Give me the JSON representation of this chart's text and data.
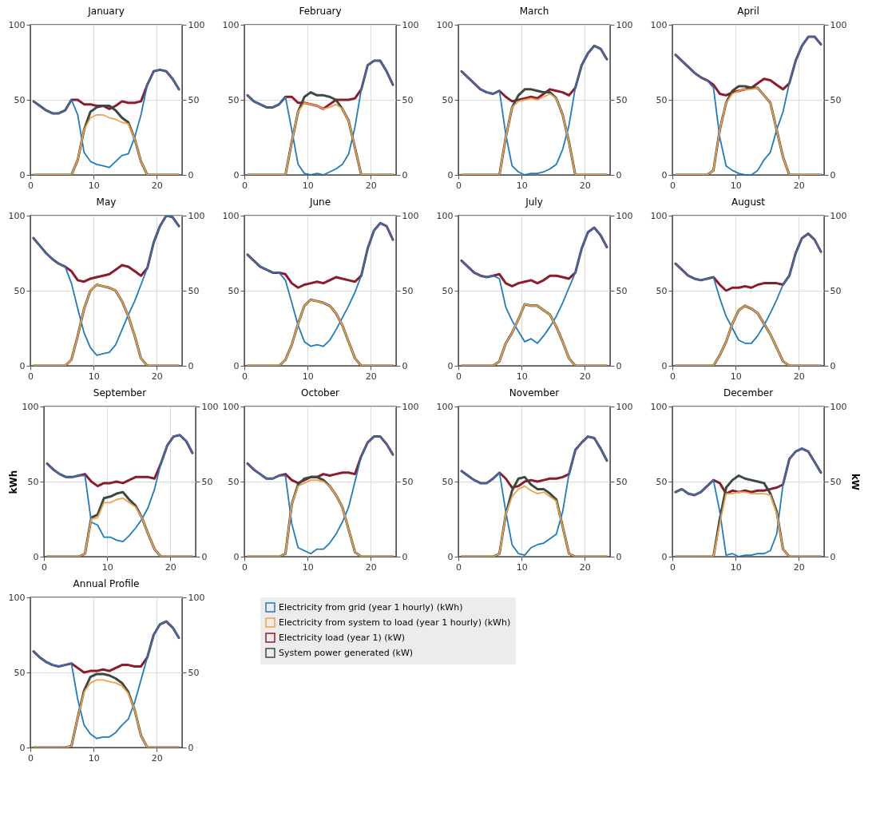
{
  "chart_data": [
    {
      "type": "line",
      "title": "January",
      "x": [
        0.5,
        1.5,
        2.5,
        3.5,
        4.5,
        5.5,
        6.5,
        7.5,
        8.5,
        9.5,
        10.5,
        11.5,
        12.5,
        13.5,
        14.5,
        15.5,
        16.5,
        17.5,
        18.5,
        19.5,
        20.5,
        21.5,
        22.5,
        23.5
      ],
      "xlim": [
        0,
        24
      ],
      "xticks": [
        0,
        10,
        20
      ],
      "ylim": [
        0,
        100
      ],
      "yticks": [
        0,
        50,
        100
      ],
      "y2lim": [
        0,
        100
      ],
      "y2ticks": [
        0,
        50,
        100
      ],
      "grid": true,
      "series": [
        {
          "color": "#1f7bbf",
          "values": [
            49,
            46,
            43,
            41,
            41,
            43,
            50,
            40,
            15,
            9,
            7,
            6,
            5,
            9,
            13,
            14,
            25,
            40,
            60,
            69,
            70,
            69,
            64,
            57
          ]
        },
        {
          "color": "#f0a04b",
          "values": [
            0,
            0,
            0,
            0,
            0,
            0,
            0,
            10,
            30,
            38,
            40,
            40,
            38,
            37,
            35,
            34,
            24,
            9,
            0,
            0,
            0,
            0,
            0,
            0
          ]
        },
        {
          "color": "#8c1c2c",
          "axis": "y2",
          "values": [
            49,
            46,
            43,
            41,
            41,
            43,
            50,
            50,
            47,
            47,
            46,
            46,
            44,
            46,
            49,
            48,
            48,
            49,
            60,
            69,
            70,
            69,
            64,
            57
          ]
        },
        {
          "color": "#3b4a40",
          "axis": "y2",
          "values": [
            0,
            0,
            0,
            0,
            0,
            0,
            0,
            10,
            30,
            42,
            45,
            46,
            46,
            43,
            38,
            35,
            24,
            9,
            0,
            0,
            0,
            0,
            0,
            0
          ]
        }
      ]
    },
    {
      "type": "line",
      "title": "February",
      "x": [
        0.5,
        1.5,
        2.5,
        3.5,
        4.5,
        5.5,
        6.5,
        7.5,
        8.5,
        9.5,
        10.5,
        11.5,
        12.5,
        13.5,
        14.5,
        15.5,
        16.5,
        17.5,
        18.5,
        19.5,
        20.5,
        21.5,
        22.5,
        23.5
      ],
      "xlim": [
        0,
        24
      ],
      "xticks": [
        0,
        10,
        20
      ],
      "ylim": [
        0,
        100
      ],
      "yticks": [
        0,
        50,
        100
      ],
      "y2lim": [
        0,
        100
      ],
      "y2ticks": [
        0,
        50,
        100
      ],
      "grid": true,
      "series": [
        {
          "color": "#1f7bbf",
          "values": [
            53,
            49,
            47,
            45,
            45,
            47,
            52,
            30,
            7,
            1,
            0,
            1,
            0,
            2,
            4,
            7,
            14,
            32,
            57,
            73,
            76,
            76,
            69,
            60
          ]
        },
        {
          "color": "#f0a04b",
          "values": [
            0,
            0,
            0,
            0,
            0,
            0,
            0,
            22,
            42,
            48,
            47,
            46,
            44,
            45,
            47,
            44,
            36,
            18,
            0,
            0,
            0,
            0,
            0,
            0
          ]
        },
        {
          "color": "#8c1c2c",
          "axis": "y2",
          "values": [
            53,
            49,
            47,
            45,
            45,
            47,
            52,
            52,
            48,
            48,
            47,
            46,
            44,
            47,
            50,
            50,
            50,
            51,
            57,
            73,
            76,
            76,
            69,
            60
          ]
        },
        {
          "color": "#3b4a40",
          "axis": "y2",
          "values": [
            0,
            0,
            0,
            0,
            0,
            0,
            0,
            22,
            42,
            52,
            55,
            53,
            53,
            52,
            50,
            44,
            36,
            18,
            0,
            0,
            0,
            0,
            0,
            0
          ]
        }
      ]
    },
    {
      "type": "line",
      "title": "March",
      "x": [
        0.5,
        1.5,
        2.5,
        3.5,
        4.5,
        5.5,
        6.5,
        7.5,
        8.5,
        9.5,
        10.5,
        11.5,
        12.5,
        13.5,
        14.5,
        15.5,
        16.5,
        17.5,
        18.5,
        19.5,
        20.5,
        21.5,
        22.5,
        23.5
      ],
      "xlim": [
        0,
        24
      ],
      "xticks": [
        0,
        10,
        20
      ],
      "ylim": [
        0,
        100
      ],
      "yticks": [
        0,
        50,
        100
      ],
      "y2lim": [
        0,
        100
      ],
      "y2ticks": [
        0,
        50,
        100
      ],
      "grid": true,
      "series": [
        {
          "color": "#1f7bbf",
          "values": [
            69,
            65,
            61,
            57,
            55,
            54,
            56,
            27,
            6,
            2,
            0,
            1,
            1,
            2,
            4,
            7,
            17,
            33,
            58,
            73,
            81,
            86,
            84,
            77
          ]
        },
        {
          "color": "#f0a04b",
          "values": [
            0,
            0,
            0,
            0,
            0,
            0,
            0,
            25,
            45,
            49,
            50,
            51,
            50,
            52,
            54,
            51,
            40,
            22,
            0,
            0,
            0,
            0,
            0,
            0
          ]
        },
        {
          "color": "#8c1c2c",
          "axis": "y2",
          "values": [
            69,
            65,
            61,
            57,
            55,
            54,
            56,
            52,
            49,
            50,
            51,
            52,
            51,
            54,
            57,
            56,
            55,
            53,
            58,
            73,
            81,
            86,
            84,
            77
          ]
        },
        {
          "color": "#3b4a40",
          "axis": "y2",
          "values": [
            0,
            0,
            0,
            0,
            0,
            0,
            0,
            25,
            45,
            53,
            57,
            57,
            56,
            55,
            55,
            51,
            40,
            22,
            0,
            0,
            0,
            0,
            0,
            0
          ]
        }
      ]
    },
    {
      "type": "line",
      "title": "April",
      "x": [
        0.5,
        1.5,
        2.5,
        3.5,
        4.5,
        5.5,
        6.5,
        7.5,
        8.5,
        9.5,
        10.5,
        11.5,
        12.5,
        13.5,
        14.5,
        15.5,
        16.5,
        17.5,
        18.5,
        19.5,
        20.5,
        21.5,
        22.5,
        23.5
      ],
      "xlim": [
        0,
        24
      ],
      "xticks": [
        0,
        10,
        20
      ],
      "ylim": [
        0,
        100
      ],
      "yticks": [
        0,
        50,
        100
      ],
      "y2lim": [
        0,
        100
      ],
      "y2ticks": [
        0,
        50,
        100
      ],
      "grid": true,
      "series": [
        {
          "color": "#1f7bbf",
          "values": [
            80,
            76,
            72,
            68,
            65,
            63,
            58,
            25,
            6,
            3,
            1,
            0,
            0,
            3,
            10,
            15,
            30,
            42,
            61,
            76,
            86,
            92,
            92,
            87
          ]
        },
        {
          "color": "#f0a04b",
          "values": [
            0,
            0,
            0,
            0,
            0,
            0,
            3,
            30,
            48,
            54,
            56,
            57,
            57,
            58,
            53,
            48,
            30,
            12,
            0,
            0,
            0,
            0,
            0,
            0
          ]
        },
        {
          "color": "#8c1c2c",
          "axis": "y2",
          "values": [
            80,
            76,
            72,
            68,
            65,
            63,
            60,
            54,
            53,
            55,
            56,
            57,
            58,
            61,
            64,
            63,
            60,
            57,
            61,
            76,
            86,
            92,
            92,
            87
          ]
        },
        {
          "color": "#3b4a40",
          "axis": "y2",
          "values": [
            0,
            0,
            0,
            0,
            0,
            0,
            3,
            30,
            48,
            56,
            59,
            59,
            58,
            58,
            53,
            48,
            30,
            12,
            0,
            0,
            0,
            0,
            0,
            0
          ]
        }
      ]
    },
    {
      "type": "line",
      "title": "May",
      "x": [
        0.5,
        1.5,
        2.5,
        3.5,
        4.5,
        5.5,
        6.5,
        7.5,
        8.5,
        9.5,
        10.5,
        11.5,
        12.5,
        13.5,
        14.5,
        15.5,
        16.5,
        17.5,
        18.5,
        19.5,
        20.5,
        21.5,
        22.5,
        23.5
      ],
      "xlim": [
        0,
        24
      ],
      "xticks": [
        0,
        10,
        20
      ],
      "ylim": [
        0,
        100
      ],
      "yticks": [
        0,
        50,
        100
      ],
      "y2lim": [
        0,
        100
      ],
      "y2ticks": [
        0,
        50,
        100
      ],
      "grid": true,
      "series": [
        {
          "color": "#1f7bbf",
          "values": [
            85,
            80,
            75,
            71,
            68,
            66,
            55,
            38,
            22,
            12,
            7,
            8,
            9,
            14,
            24,
            34,
            43,
            54,
            65,
            82,
            93,
            100,
            99,
            93
          ]
        },
        {
          "color": "#f0a04b",
          "values": [
            0,
            0,
            0,
            0,
            0,
            0,
            4,
            20,
            38,
            50,
            54,
            53,
            52,
            50,
            43,
            33,
            20,
            5,
            0,
            0,
            0,
            0,
            0,
            0
          ]
        },
        {
          "color": "#8c1c2c",
          "axis": "y2",
          "values": [
            85,
            80,
            75,
            71,
            68,
            66,
            63,
            57,
            56,
            58,
            59,
            60,
            61,
            64,
            67,
            66,
            63,
            60,
            65,
            82,
            93,
            100,
            99,
            93
          ]
        },
        {
          "color": "#3b4a40",
          "axis": "y2",
          "values": [
            0,
            0,
            0,
            0,
            0,
            0,
            4,
            20,
            38,
            50,
            54,
            53,
            52,
            50,
            43,
            33,
            20,
            5,
            0,
            0,
            0,
            0,
            0,
            0
          ]
        }
      ]
    },
    {
      "type": "line",
      "title": "June",
      "x": [
        0.5,
        1.5,
        2.5,
        3.5,
        4.5,
        5.5,
        6.5,
        7.5,
        8.5,
        9.5,
        10.5,
        11.5,
        12.5,
        13.5,
        14.5,
        15.5,
        16.5,
        17.5,
        18.5,
        19.5,
        20.5,
        21.5,
        22.5,
        23.5
      ],
      "xlim": [
        0,
        24
      ],
      "xticks": [
        0,
        10,
        20
      ],
      "ylim": [
        0,
        100
      ],
      "yticks": [
        0,
        50,
        100
      ],
      "y2lim": [
        0,
        100
      ],
      "y2ticks": [
        0,
        50,
        100
      ],
      "grid": true,
      "series": [
        {
          "color": "#1f7bbf",
          "values": [
            74,
            70,
            66,
            64,
            62,
            62,
            57,
            42,
            27,
            16,
            13,
            14,
            13,
            17,
            24,
            32,
            40,
            49,
            60,
            78,
            90,
            95,
            93,
            84
          ]
        },
        {
          "color": "#f0a04b",
          "values": [
            0,
            0,
            0,
            0,
            0,
            0,
            4,
            14,
            28,
            40,
            44,
            43,
            42,
            40,
            35,
            27,
            16,
            5,
            0,
            0,
            0,
            0,
            0,
            0
          ]
        },
        {
          "color": "#8c1c2c",
          "axis": "y2",
          "values": [
            74,
            70,
            66,
            64,
            62,
            62,
            61,
            55,
            52,
            54,
            55,
            56,
            55,
            57,
            59,
            58,
            57,
            56,
            60,
            78,
            90,
            95,
            93,
            84
          ]
        },
        {
          "color": "#3b4a40",
          "axis": "y2",
          "values": [
            0,
            0,
            0,
            0,
            0,
            0,
            4,
            14,
            28,
            40,
            44,
            43,
            42,
            40,
            35,
            27,
            16,
            5,
            0,
            0,
            0,
            0,
            0,
            0
          ]
        }
      ]
    },
    {
      "type": "line",
      "title": "July",
      "x": [
        0.5,
        1.5,
        2.5,
        3.5,
        4.5,
        5.5,
        6.5,
        7.5,
        8.5,
        9.5,
        10.5,
        11.5,
        12.5,
        13.5,
        14.5,
        15.5,
        16.5,
        17.5,
        18.5,
        19.5,
        20.5,
        21.5,
        22.5,
        23.5
      ],
      "xlim": [
        0,
        24
      ],
      "xticks": [
        0,
        10,
        20
      ],
      "ylim": [
        0,
        100
      ],
      "yticks": [
        0,
        50,
        100
      ],
      "y2lim": [
        0,
        100
      ],
      "y2ticks": [
        0,
        50,
        100
      ],
      "grid": true,
      "series": [
        {
          "color": "#1f7bbf",
          "values": [
            70,
            66,
            62,
            60,
            59,
            60,
            58,
            39,
            30,
            23,
            16,
            18,
            15,
            20,
            26,
            33,
            42,
            52,
            62,
            78,
            89,
            92,
            87,
            79
          ]
        },
        {
          "color": "#f0a04b",
          "values": [
            0,
            0,
            0,
            0,
            0,
            0,
            3,
            15,
            22,
            31,
            41,
            40,
            40,
            37,
            34,
            26,
            16,
            5,
            0,
            0,
            0,
            0,
            0,
            0
          ]
        },
        {
          "color": "#8c1c2c",
          "axis": "y2",
          "values": [
            70,
            66,
            62,
            60,
            59,
            60,
            61,
            55,
            53,
            55,
            56,
            57,
            55,
            57,
            60,
            60,
            59,
            58,
            62,
            78,
            89,
            92,
            87,
            79
          ]
        },
        {
          "color": "#3b4a40",
          "axis": "y2",
          "values": [
            0,
            0,
            0,
            0,
            0,
            0,
            3,
            15,
            22,
            31,
            41,
            40,
            40,
            37,
            34,
            26,
            16,
            5,
            0,
            0,
            0,
            0,
            0,
            0
          ]
        }
      ]
    },
    {
      "type": "line",
      "title": "August",
      "x": [
        0.5,
        1.5,
        2.5,
        3.5,
        4.5,
        5.5,
        6.5,
        7.5,
        8.5,
        9.5,
        10.5,
        11.5,
        12.5,
        13.5,
        14.5,
        15.5,
        16.5,
        17.5,
        18.5,
        19.5,
        20.5,
        21.5,
        22.5,
        23.5
      ],
      "xlim": [
        0,
        24
      ],
      "xticks": [
        0,
        10,
        20
      ],
      "ylim": [
        0,
        100
      ],
      "yticks": [
        0,
        50,
        100
      ],
      "y2lim": [
        0,
        100
      ],
      "y2ticks": [
        0,
        50,
        100
      ],
      "grid": true,
      "series": [
        {
          "color": "#1f7bbf",
          "values": [
            68,
            64,
            60,
            58,
            57,
            58,
            59,
            45,
            33,
            25,
            17,
            15,
            15,
            20,
            27,
            35,
            44,
            54,
            60,
            75,
            85,
            88,
            84,
            76
          ]
        },
        {
          "color": "#f0a04b",
          "values": [
            0,
            0,
            0,
            0,
            0,
            0,
            0,
            7,
            16,
            28,
            37,
            40,
            38,
            35,
            28,
            21,
            12,
            3,
            0,
            0,
            0,
            0,
            0,
            0
          ]
        },
        {
          "color": "#8c1c2c",
          "axis": "y2",
          "values": [
            68,
            64,
            60,
            58,
            57,
            58,
            59,
            54,
            50,
            52,
            52,
            53,
            52,
            54,
            55,
            55,
            55,
            54,
            60,
            75,
            85,
            88,
            84,
            76
          ]
        },
        {
          "color": "#3b4a40",
          "axis": "y2",
          "values": [
            0,
            0,
            0,
            0,
            0,
            0,
            0,
            7,
            16,
            28,
            37,
            40,
            38,
            35,
            28,
            21,
            12,
            3,
            0,
            0,
            0,
            0,
            0,
            0
          ]
        }
      ]
    },
    {
      "type": "line",
      "title": "September",
      "ylabel": "kWh",
      "x": [
        0.5,
        1.5,
        2.5,
        3.5,
        4.5,
        5.5,
        6.5,
        7.5,
        8.5,
        9.5,
        10.5,
        11.5,
        12.5,
        13.5,
        14.5,
        15.5,
        16.5,
        17.5,
        18.5,
        19.5,
        20.5,
        21.5,
        22.5,
        23.5
      ],
      "xlim": [
        0,
        24
      ],
      "xticks": [
        0,
        10,
        20
      ],
      "ylim": [
        0,
        100
      ],
      "yticks": [
        0,
        50,
        100
      ],
      "y2lim": [
        0,
        100
      ],
      "y2ticks": [
        0,
        50,
        100
      ],
      "grid": true,
      "series": [
        {
          "color": "#1f7bbf",
          "values": [
            62,
            58,
            55,
            53,
            53,
            54,
            54,
            23,
            21,
            13,
            13,
            11,
            10,
            14,
            19,
            25,
            33,
            45,
            62,
            74,
            80,
            81,
            77,
            69
          ]
        },
        {
          "color": "#f0a04b",
          "values": [
            0,
            0,
            0,
            0,
            0,
            0,
            2,
            25,
            26,
            36,
            36,
            38,
            39,
            36,
            33,
            26,
            15,
            5,
            0,
            0,
            0,
            0,
            0,
            0
          ]
        },
        {
          "color": "#8c1c2c",
          "axis": "y2",
          "values": [
            62,
            58,
            55,
            53,
            53,
            54,
            55,
            50,
            47,
            49,
            49,
            50,
            49,
            51,
            53,
            53,
            53,
            52,
            62,
            74,
            80,
            81,
            77,
            69
          ]
        },
        {
          "color": "#3b4a40",
          "axis": "y2",
          "values": [
            0,
            0,
            0,
            0,
            0,
            0,
            2,
            26,
            28,
            39,
            40,
            42,
            43,
            38,
            34,
            26,
            15,
            5,
            0,
            0,
            0,
            0,
            0,
            0
          ]
        }
      ]
    },
    {
      "type": "line",
      "title": "October",
      "x": [
        0.5,
        1.5,
        2.5,
        3.5,
        4.5,
        5.5,
        6.5,
        7.5,
        8.5,
        9.5,
        10.5,
        11.5,
        12.5,
        13.5,
        14.5,
        15.5,
        16.5,
        17.5,
        18.5,
        19.5,
        20.5,
        21.5,
        22.5,
        23.5
      ],
      "xlim": [
        0,
        24
      ],
      "xticks": [
        0,
        10,
        20
      ],
      "ylim": [
        0,
        100
      ],
      "yticks": [
        0,
        50,
        100
      ],
      "y2lim": [
        0,
        100
      ],
      "y2ticks": [
        0,
        50,
        100
      ],
      "grid": true,
      "series": [
        {
          "color": "#1f7bbf",
          "values": [
            62,
            58,
            55,
            52,
            52,
            54,
            54,
            22,
            6,
            4,
            2,
            5,
            5,
            9,
            15,
            23,
            33,
            50,
            67,
            76,
            80,
            80,
            75,
            68
          ]
        },
        {
          "color": "#f0a04b",
          "values": [
            0,
            0,
            0,
            0,
            0,
            0,
            2,
            35,
            47,
            49,
            51,
            51,
            50,
            47,
            41,
            33,
            18,
            3,
            0,
            0,
            0,
            0,
            0,
            0
          ]
        },
        {
          "color": "#8c1c2c",
          "axis": "y2",
          "values": [
            62,
            58,
            55,
            52,
            52,
            54,
            55,
            51,
            49,
            51,
            53,
            53,
            55,
            54,
            55,
            56,
            56,
            55,
            67,
            76,
            80,
            80,
            75,
            68
          ]
        },
        {
          "color": "#3b4a40",
          "axis": "y2",
          "values": [
            0,
            0,
            0,
            0,
            0,
            0,
            2,
            35,
            48,
            52,
            53,
            53,
            51,
            47,
            41,
            33,
            18,
            3,
            0,
            0,
            0,
            0,
            0,
            0
          ]
        }
      ]
    },
    {
      "type": "line",
      "title": "November",
      "x": [
        0.5,
        1.5,
        2.5,
        3.5,
        4.5,
        5.5,
        6.5,
        7.5,
        8.5,
        9.5,
        10.5,
        11.5,
        12.5,
        13.5,
        14.5,
        15.5,
        16.5,
        17.5,
        18.5,
        19.5,
        20.5,
        21.5,
        22.5,
        23.5
      ],
      "xlim": [
        0,
        24
      ],
      "xticks": [
        0,
        10,
        20
      ],
      "ylim": [
        0,
        100
      ],
      "yticks": [
        0,
        50,
        100
      ],
      "y2lim": [
        0,
        100
      ],
      "y2ticks": [
        0,
        50,
        100
      ],
      "grid": true,
      "series": [
        {
          "color": "#1f7bbf",
          "values": [
            57,
            54,
            51,
            49,
            49,
            52,
            56,
            30,
            8,
            2,
            1,
            6,
            8,
            9,
            12,
            15,
            30,
            55,
            71,
            76,
            80,
            79,
            72,
            64
          ]
        },
        {
          "color": "#f0a04b",
          "values": [
            0,
            0,
            0,
            0,
            0,
            0,
            2,
            28,
            40,
            45,
            47,
            44,
            42,
            43,
            40,
            37,
            20,
            2,
            0,
            0,
            0,
            0,
            0,
            0
          ]
        },
        {
          "color": "#8c1c2c",
          "axis": "y2",
          "values": [
            57,
            54,
            51,
            49,
            49,
            52,
            56,
            52,
            46,
            47,
            50,
            51,
            50,
            51,
            52,
            52,
            53,
            55,
            71,
            76,
            80,
            79,
            72,
            64
          ]
        },
        {
          "color": "#3b4a40",
          "axis": "y2",
          "values": [
            0,
            0,
            0,
            0,
            0,
            0,
            2,
            28,
            44,
            52,
            53,
            48,
            45,
            45,
            42,
            38,
            20,
            2,
            0,
            0,
            0,
            0,
            0,
            0
          ]
        }
      ]
    },
    {
      "type": "line",
      "title": "December",
      "y2label": "kW",
      "x": [
        0.5,
        1.5,
        2.5,
        3.5,
        4.5,
        5.5,
        6.5,
        7.5,
        8.5,
        9.5,
        10.5,
        11.5,
        12.5,
        13.5,
        14.5,
        15.5,
        16.5,
        17.5,
        18.5,
        19.5,
        20.5,
        21.5,
        22.5,
        23.5
      ],
      "xlim": [
        0,
        24
      ],
      "xticks": [
        0,
        10,
        20
      ],
      "ylim": [
        0,
        100
      ],
      "yticks": [
        0,
        50,
        100
      ],
      "y2lim": [
        0,
        100
      ],
      "y2ticks": [
        0,
        50,
        100
      ],
      "grid": true,
      "series": [
        {
          "color": "#1f7bbf",
          "values": [
            43,
            45,
            42,
            41,
            43,
            47,
            51,
            30,
            1,
            2,
            0,
            1,
            1,
            2,
            2,
            4,
            15,
            48,
            65,
            70,
            72,
            70,
            63,
            56
          ]
        },
        {
          "color": "#f0a04b",
          "values": [
            0,
            0,
            0,
            0,
            0,
            0,
            0,
            22,
            42,
            42,
            43,
            43,
            42,
            42,
            42,
            41,
            29,
            5,
            0,
            0,
            0,
            0,
            0,
            0
          ]
        },
        {
          "color": "#8c1c2c",
          "axis": "y2",
          "values": [
            43,
            45,
            42,
            41,
            43,
            47,
            51,
            49,
            42,
            44,
            43,
            44,
            43,
            44,
            44,
            45,
            46,
            48,
            65,
            70,
            72,
            70,
            63,
            56
          ]
        },
        {
          "color": "#3b4a40",
          "axis": "y2",
          "values": [
            0,
            0,
            0,
            0,
            0,
            0,
            0,
            25,
            46,
            51,
            54,
            52,
            51,
            50,
            49,
            42,
            30,
            5,
            0,
            0,
            0,
            0,
            0,
            0
          ]
        }
      ]
    },
    {
      "type": "line",
      "title": "Annual Profile",
      "legend": "right",
      "x": [
        0.5,
        1.5,
        2.5,
        3.5,
        4.5,
        5.5,
        6.5,
        7.5,
        8.5,
        9.5,
        10.5,
        11.5,
        12.5,
        13.5,
        14.5,
        15.5,
        16.5,
        17.5,
        18.5,
        19.5,
        20.5,
        21.5,
        22.5,
        23.5
      ],
      "xlim": [
        0,
        24
      ],
      "xticks": [
        0,
        10,
        20
      ],
      "ylim": [
        0,
        100
      ],
      "yticks": [
        0,
        50,
        100
      ],
      "y2lim": [
        0,
        100
      ],
      "y2ticks": [
        0,
        50,
        100
      ],
      "grid": true,
      "series": [
        {
          "name": "Electricity from grid (year 1 hourly) (kWh)",
          "color": "#1f7bbf",
          "values": [
            64,
            60,
            57,
            55,
            54,
            55,
            56,
            32,
            15,
            9,
            6,
            7,
            7,
            10,
            15,
            19,
            30,
            45,
            60,
            75,
            82,
            84,
            80,
            73
          ]
        },
        {
          "name": "Electricity from system to load (year 1 hourly) (kWh)",
          "color": "#f0a04b",
          "values": [
            0,
            0,
            0,
            0,
            0,
            0,
            1,
            20,
            37,
            43,
            45,
            45,
            44,
            43,
            41,
            36,
            25,
            8,
            0,
            0,
            0,
            0,
            0,
            0
          ]
        },
        {
          "name": "Electricity load (year 1) (kW)",
          "color": "#8c1c2c",
          "axis": "y2",
          "values": [
            64,
            60,
            57,
            55,
            54,
            55,
            56,
            53,
            50,
            51,
            51,
            52,
            51,
            53,
            55,
            55,
            54,
            54,
            60,
            75,
            82,
            84,
            80,
            73
          ]
        },
        {
          "name": "System power generated (kW)",
          "color": "#3b4a40",
          "axis": "y2",
          "values": [
            0,
            0,
            0,
            0,
            0,
            0,
            1,
            20,
            38,
            47,
            49,
            49,
            48,
            46,
            43,
            37,
            25,
            8,
            0,
            0,
            0,
            0,
            0,
            0
          ]
        }
      ]
    }
  ]
}
